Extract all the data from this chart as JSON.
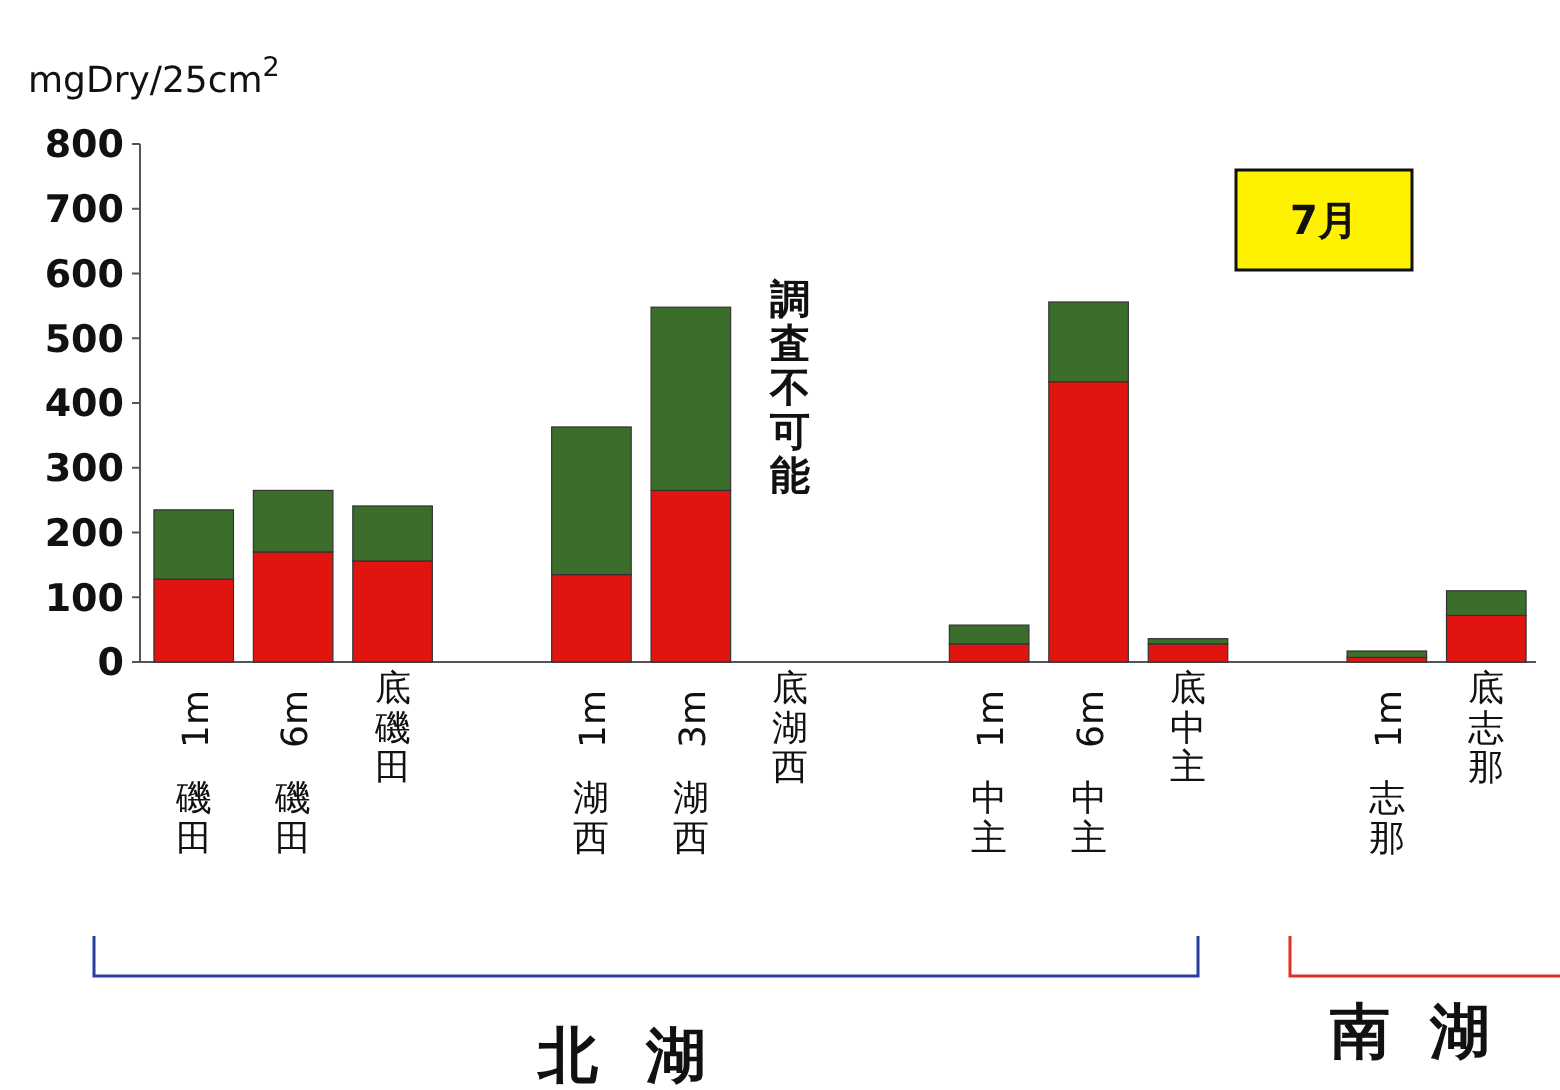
{
  "chart_data": {
    "type": "bar",
    "stacked": true,
    "ylabel": "mgDry/25cm$^{2}$",
    "categories": [
      "1m\n磯田",
      "6m\n磯田",
      "底磯田",
      null,
      "1m\n湖西",
      "3m\n湖西",
      "底湖西",
      null,
      "1m\n中主",
      "6m\n中主",
      "底中主",
      null,
      "1m\n志那",
      "底志那"
    ],
    "series": [
      {
        "color": "#e0150f",
        "values": [
          128,
          170,
          156,
          null,
          135,
          265,
          null,
          null,
          28,
          433,
          28,
          null,
          7,
          72
        ]
      },
      {
        "color": "#3b6e2a",
        "values": [
          107,
          95,
          85,
          null,
          228,
          283,
          null,
          null,
          29,
          123,
          8,
          null,
          10,
          38
        ]
      }
    ],
    "ylim": [
      0,
      800
    ],
    "yticks": [
      0,
      100,
      200,
      300,
      400,
      500,
      600,
      700,
      800
    ],
    "grid": false,
    "legend": false,
    "annotations": [
      "調査不可能",
      "北湖",
      "南湖",
      "7月"
    ]
  }
}
